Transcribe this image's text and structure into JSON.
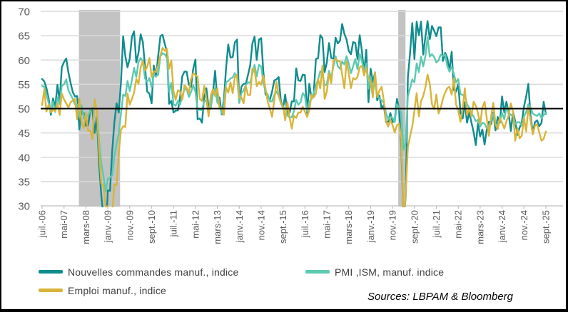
{
  "source_note": "Sources: LBPAM & Bloomberg",
  "colors": {
    "new_orders": "#0F8C8E",
    "pmi": "#5CC9B1",
    "employment": "#D9B43A",
    "gridline": "#D9D9D9",
    "axis_line": "#BFBFBF",
    "recession_band": "#C3C3C3",
    "reference_line": "#000000",
    "tick_label": "#595959"
  },
  "chart_data": {
    "type": "line",
    "title": "",
    "xlabel": "",
    "ylabel": "",
    "x_unit": "month",
    "n_months": 231,
    "x_start_label": "juil.-06",
    "x_end_label": "sept.-25",
    "x_tick_interval_months": 10,
    "x_ticklabels": [
      "juil.-06",
      "mai-07",
      "mars-08",
      "janv.-09",
      "nov.-09",
      "sept.-10",
      "juil.-11",
      "mai-12",
      "mars-13",
      "janv.-14",
      "nov.-14",
      "sept.-15",
      "juil.-16",
      "mai-17",
      "mars-18",
      "janv.-19",
      "nov.-19",
      "sept.-20",
      "juil.-21",
      "mai-22",
      "mars-23",
      "janv.-24",
      "nov.-24",
      "sept.-25"
    ],
    "ylim": [
      30,
      70
    ],
    "y_tick_step": 5,
    "y_ticklabels": [
      "70",
      "65",
      "60",
      "55",
      "50",
      "45",
      "40",
      "35",
      "30"
    ],
    "grid": true,
    "legend_position": "bottom",
    "reference_line_y": 50,
    "values_below_ymin_clipped": true,
    "shaded_regions": [
      {
        "name": "recession-2008-2009",
        "start_month_index": 16.8,
        "end_month_index": 35.6
      },
      {
        "name": "recession-2020",
        "start_month_index": 162.6,
        "end_month_index": 165.9
      }
    ],
    "series": [
      {
        "name": "Nouvelles commandes manuf., indice",
        "color": "#0F8C8E",
        "values": [
          56.1,
          55.6,
          54.2,
          52.1,
          48.7,
          52.1,
          50.3,
          54.9,
          51.6,
          58.5,
          59.6,
          60.3,
          57.5,
          55.3,
          53.4,
          52.5,
          52.6,
          45.7,
          49.5,
          49.1,
          46.5,
          46.5,
          49.7,
          49.6,
          45.0,
          48.3,
          38.8,
          32.2,
          27.9,
          22.7,
          33.2,
          33.1,
          41.2,
          47.2,
          51.1,
          49.2,
          55.3,
          64.9,
          60.8,
          58.5,
          60.3,
          64.8,
          65.9,
          59.5,
          61.5,
          65.3,
          63.7,
          58.5,
          53.5,
          53.1,
          51.1,
          58.9,
          56.6,
          60.9,
          64.9,
          65.2,
          63.3,
          61.7,
          51.0,
          51.6,
          49.2,
          49.6,
          49.6,
          52.4,
          56.7,
          57.6,
          57.6,
          54.9,
          54.5,
          58.2,
          60.1,
          47.8,
          48.0,
          47.1,
          52.3,
          54.2,
          50.3,
          50.3,
          53.3,
          57.8,
          51.4,
          52.3,
          48.8,
          51.9,
          58.3,
          63.2,
          60.5,
          60.6,
          63.6,
          64.2,
          51.2,
          54.5,
          55.1,
          55.1,
          56.9,
          58.9,
          63.4,
          64.8,
          60.0,
          64.2,
          64.5,
          57.8,
          52.9,
          52.5,
          51.8,
          53.5,
          55.8,
          56.0,
          56.5,
          51.6,
          50.1,
          52.9,
          48.9,
          49.2,
          51.5,
          51.5,
          58.3,
          55.8,
          55.7,
          57.0,
          56.9,
          49.1,
          55.1,
          52.1,
          53.0,
          60.2,
          60.4,
          65.1,
          64.5,
          57.5,
          59.5,
          63.5,
          60.4,
          60.3,
          64.6,
          63.4,
          64.0,
          67.4,
          65.4,
          64.2,
          61.9,
          61.2,
          63.7,
          63.5,
          60.2,
          65.1,
          61.8,
          57.4,
          62.1,
          51.3,
          58.2,
          55.5,
          57.4,
          51.7,
          52.7,
          50.0,
          50.8,
          47.2,
          47.3,
          49.1,
          47.2,
          47.6,
          52.0,
          49.8,
          42.2,
          27.1,
          31.8,
          56.4,
          61.5,
          67.6,
          60.2,
          67.9,
          65.1,
          67.9,
          61.1,
          64.8,
          68.0,
          64.3,
          67.0,
          66.0,
          64.9,
          66.7,
          66.7,
          59.8,
          61.5,
          60.4,
          57.9,
          61.7,
          53.8,
          53.5,
          55.1,
          49.2,
          48.0,
          51.3,
          47.1,
          49.2,
          47.2,
          45.2,
          42.5,
          47.0,
          44.3,
          45.7,
          42.6,
          45.6,
          47.3,
          46.8,
          49.2,
          45.5,
          48.3,
          47.1,
          52.5,
          49.2,
          51.4,
          49.1,
          45.4,
          49.3,
          47.4,
          44.6,
          46.1,
          47.1,
          50.4,
          52.5,
          55.1,
          48.6,
          45.2,
          47.2,
          47.6,
          46.4,
          47.1,
          51.4,
          48.9
        ]
      },
      {
        "name": "PMI ,ISM, manuf. indice",
        "color": "#5CC9B1",
        "values": [
          54.7,
          54.5,
          52.9,
          51.2,
          49.5,
          51.4,
          49.3,
          52.3,
          50.9,
          54.7,
          55.0,
          56.0,
          53.8,
          52.9,
          52.0,
          50.9,
          50.8,
          48.4,
          50.7,
          48.3,
          48.6,
          48.6,
          49.6,
          50.2,
          50.0,
          49.9,
          43.5,
          38.9,
          36.2,
          32.9,
          35.6,
          35.8,
          36.3,
          40.1,
          42.8,
          44.8,
          48.9,
          52.9,
          52.6,
          55.7,
          53.6,
          55.9,
          58.4,
          56.5,
          59.6,
          60.4,
          59.7,
          56.2,
          55.5,
          56.3,
          54.4,
          56.9,
          56.6,
          57.0,
          60.8,
          61.4,
          61.2,
          60.4,
          53.5,
          55.3,
          50.9,
          50.6,
          51.6,
          50.8,
          52.7,
          53.9,
          54.1,
          52.4,
          53.4,
          54.8,
          53.5,
          49.7,
          49.8,
          49.6,
          51.5,
          51.7,
          49.5,
          50.2,
          53.1,
          54.2,
          51.3,
          50.7,
          49.0,
          50.9,
          55.4,
          55.7,
          56.2,
          56.4,
          57.3,
          56.5,
          51.3,
          53.2,
          53.7,
          54.9,
          55.4,
          55.3,
          57.1,
          59.0,
          56.6,
          59.0,
          58.7,
          55.5,
          53.5,
          52.9,
          51.5,
          51.5,
          52.8,
          53.5,
          52.7,
          51.1,
          50.2,
          50.1,
          48.6,
          48.2,
          48.2,
          49.5,
          51.8,
          50.8,
          51.3,
          53.2,
          52.6,
          49.4,
          51.5,
          51.9,
          53.2,
          54.7,
          56.0,
          57.7,
          57.2,
          54.8,
          54.9,
          57.8,
          56.3,
          58.8,
          60.8,
          58.7,
          58.2,
          59.7,
          59.1,
          60.8,
          59.3,
          57.3,
          58.7,
          60.2,
          58.1,
          61.3,
          59.8,
          57.7,
          59.3,
          54.1,
          56.6,
          54.2,
          55.3,
          52.8,
          52.1,
          51.7,
          51.2,
          49.1,
          47.8,
          48.3,
          48.1,
          47.2,
          50.9,
          50.1,
          49.1,
          41.5,
          43.1,
          52.6,
          54.2,
          56.0,
          55.4,
          59.3,
          57.5,
          60.7,
          58.7,
          60.8,
          64.7,
          60.7,
          61.2,
          60.6,
          59.5,
          59.9,
          61.1,
          60.8,
          61.1,
          58.7,
          57.6,
          58.6,
          57.1,
          55.4,
          56.1,
          53.0,
          52.8,
          52.8,
          50.9,
          50.2,
          49.0,
          48.4,
          47.4,
          47.7,
          46.3,
          47.1,
          46.9,
          46.0,
          46.4,
          47.6,
          49.0,
          46.7,
          46.7,
          47.4,
          49.1,
          47.8,
          50.3,
          49.2,
          48.7,
          48.5,
          46.8,
          47.2,
          47.2,
          46.5,
          48.4,
          49.3,
          50.9,
          50.3,
          49.0,
          48.7,
          48.5,
          49.0,
          48.0,
          48.7,
          49.1
        ]
      },
      {
        "name": "Emploi manuf., indice",
        "color": "#D9B43A",
        "values": [
          50.7,
          54.0,
          49.4,
          50.8,
          49.2,
          49.7,
          49.5,
          51.1,
          48.7,
          53.1,
          51.9,
          51.1,
          50.2,
          51.3,
          51.7,
          52.0,
          47.8,
          52.1,
          47.1,
          46.0,
          49.2,
          45.4,
          45.5,
          43.7,
          51.9,
          49.7,
          41.8,
          34.6,
          34.2,
          29.9,
          29.9,
          26.1,
          28.1,
          34.4,
          34.3,
          40.7,
          45.6,
          46.4,
          46.2,
          53.1,
          50.8,
          52.0,
          53.3,
          56.1,
          55.1,
          58.5,
          59.8,
          57.8,
          58.6,
          60.4,
          56.5,
          57.7,
          57.5,
          58.9,
          61.0,
          62.5,
          61.9,
          62.3,
          58.2,
          59.9,
          53.5,
          51.8,
          53.8,
          53.5,
          51.8,
          54.8,
          54.3,
          53.2,
          56.1,
          57.3,
          56.9,
          56.6,
          52.0,
          51.6,
          54.7,
          52.1,
          48.4,
          52.7,
          54.0,
          52.6,
          54.2,
          50.2,
          50.1,
          48.7,
          54.4,
          53.3,
          55.4,
          53.2,
          56.5,
          56.9,
          52.3,
          52.3,
          51.1,
          54.7,
          52.8,
          52.8,
          58.2,
          58.1,
          54.6,
          55.5,
          54.9,
          56.8,
          54.1,
          51.4,
          50.0,
          48.3,
          51.7,
          55.5,
          52.7,
          51.2,
          50.5,
          47.6,
          51.3,
          48.1,
          45.9,
          48.5,
          48.1,
          49.2,
          49.2,
          50.4,
          49.4,
          48.3,
          49.7,
          52.9,
          52.3,
          53.1,
          56.1,
          54.2,
          58.9,
          52.0,
          53.5,
          57.2,
          55.2,
          59.9,
          60.3,
          59.8,
          59.7,
          57.0,
          54.2,
          59.7,
          57.3,
          54.2,
          56.3,
          56.0,
          56.5,
          58.5,
          58.8,
          56.8,
          58.4,
          56.2,
          55.5,
          52.3,
          57.5,
          52.4,
          53.7,
          54.5,
          51.7,
          47.4,
          46.3,
          47.7,
          46.6,
          45.1,
          46.6,
          46.9,
          43.8,
          27.5,
          32.1,
          42.1,
          44.3,
          46.4,
          49.6,
          53.2,
          48.4,
          51.5,
          52.6,
          54.4,
          57.0,
          55.1,
          50.9,
          49.9,
          52.9,
          49.0,
          50.2,
          52.0,
          53.3,
          54.2,
          54.5,
          52.9,
          56.3,
          50.9,
          49.6,
          47.3,
          49.9,
          54.2,
          48.7,
          50.0,
          48.4,
          51.4,
          50.6,
          49.1,
          46.9,
          50.2,
          51.4,
          48.1,
          44.4,
          48.5,
          51.2,
          46.8,
          45.8,
          48.1,
          47.1,
          45.9,
          47.4,
          48.6,
          51.1,
          49.3,
          43.4,
          46.0,
          43.9,
          44.4,
          48.1,
          45.3,
          50.3,
          47.6,
          44.7,
          46.5,
          46.8,
          45.0,
          43.4,
          43.8,
          45.3
        ]
      }
    ]
  },
  "legend": {
    "items": [
      {
        "label": "Nouvelles commandes manuf., indice",
        "color": "#0F8C8E"
      },
      {
        "label": "PMI ,ISM, manuf. indice",
        "color": "#5CC9B1"
      },
      {
        "label": "Emploi manuf., indice",
        "color": "#D9B43A"
      }
    ]
  }
}
